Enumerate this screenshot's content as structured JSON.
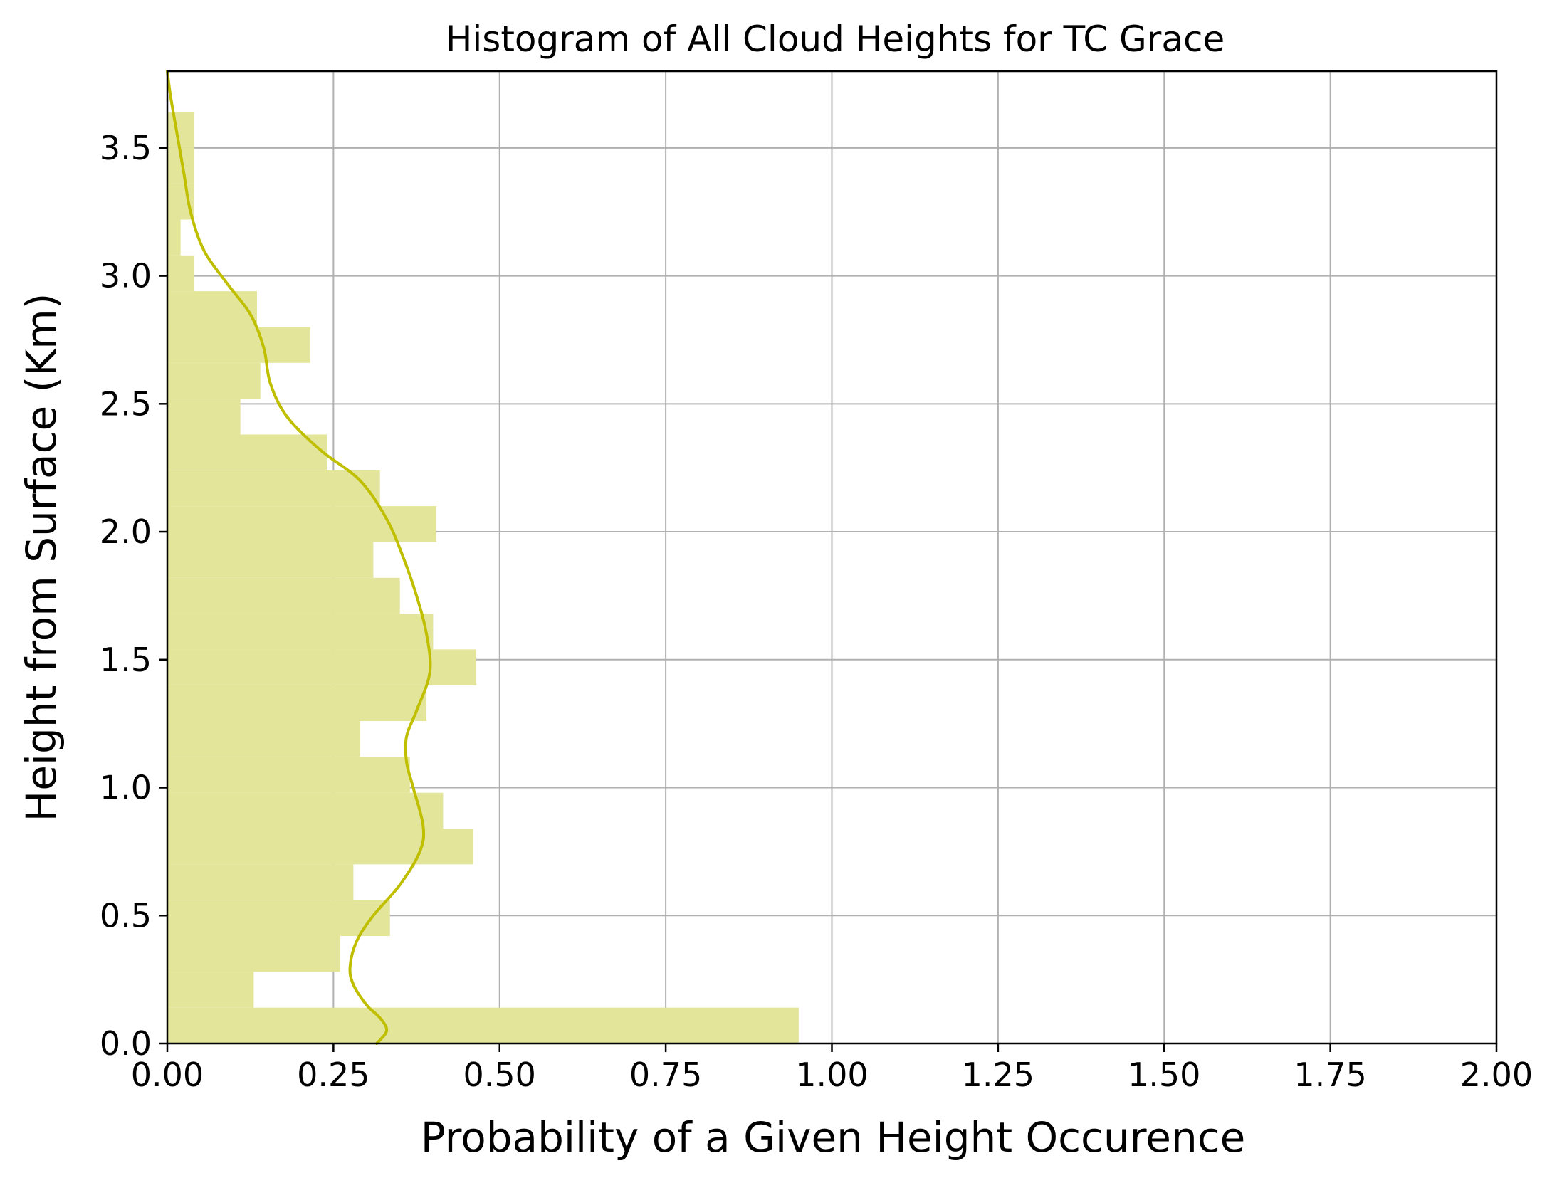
{
  "chart_data": {
    "type": "bar",
    "orientation": "horizontal",
    "title": "Histogram of All Cloud Heights for TC Grace",
    "xlabel": "Probability of a Given Height Occurence",
    "ylabel": "Height from Surface (Km)",
    "xlim": [
      0,
      2.0
    ],
    "ylim": [
      0,
      3.8
    ],
    "xticks": [
      "0.00",
      "0.25",
      "0.50",
      "0.75",
      "1.00",
      "1.25",
      "1.50",
      "1.75",
      "2.00"
    ],
    "yticks": [
      "0.0",
      "0.5",
      "1.0",
      "1.5",
      "2.0",
      "2.5",
      "3.0",
      "3.5"
    ],
    "grid": true,
    "bar_color": "#e3e59a",
    "kde_color": "#bfbf00",
    "bins": [
      {
        "bottom": 0.0,
        "top": 0.14,
        "value": 0.95
      },
      {
        "bottom": 0.14,
        "top": 0.28,
        "value": 0.13
      },
      {
        "bottom": 0.28,
        "top": 0.42,
        "value": 0.26
      },
      {
        "bottom": 0.42,
        "top": 0.56,
        "value": 0.335
      },
      {
        "bottom": 0.56,
        "top": 0.7,
        "value": 0.28
      },
      {
        "bottom": 0.7,
        "top": 0.84,
        "value": 0.46
      },
      {
        "bottom": 0.84,
        "top": 0.98,
        "value": 0.415
      },
      {
        "bottom": 0.98,
        "top": 1.12,
        "value": 0.365
      },
      {
        "bottom": 1.12,
        "top": 1.26,
        "value": 0.29
      },
      {
        "bottom": 1.26,
        "top": 1.4,
        "value": 0.39
      },
      {
        "bottom": 1.4,
        "top": 1.54,
        "value": 0.465
      },
      {
        "bottom": 1.54,
        "top": 1.68,
        "value": 0.4
      },
      {
        "bottom": 1.68,
        "top": 1.82,
        "value": 0.35
      },
      {
        "bottom": 1.82,
        "top": 1.96,
        "value": 0.31
      },
      {
        "bottom": 1.96,
        "top": 2.1,
        "value": 0.405
      },
      {
        "bottom": 2.1,
        "top": 2.24,
        "value": 0.32
      },
      {
        "bottom": 2.24,
        "top": 2.38,
        "value": 0.24
      },
      {
        "bottom": 2.38,
        "top": 2.52,
        "value": 0.11
      },
      {
        "bottom": 2.52,
        "top": 2.66,
        "value": 0.14
      },
      {
        "bottom": 2.66,
        "top": 2.8,
        "value": 0.215
      },
      {
        "bottom": 2.8,
        "top": 2.94,
        "value": 0.135
      },
      {
        "bottom": 2.94,
        "top": 3.08,
        "value": 0.04
      },
      {
        "bottom": 3.08,
        "top": 3.22,
        "value": 0.02
      },
      {
        "bottom": 3.22,
        "top": 3.36,
        "value": 0.04
      },
      {
        "bottom": 3.36,
        "top": 3.5,
        "value": 0.04
      },
      {
        "bottom": 3.5,
        "top": 3.64,
        "value": 0.04
      }
    ],
    "kde": [
      {
        "x": 0.315,
        "y": 0.0
      },
      {
        "x": 0.33,
        "y": 0.05
      },
      {
        "x": 0.32,
        "y": 0.1
      },
      {
        "x": 0.3,
        "y": 0.15
      },
      {
        "x": 0.28,
        "y": 0.23
      },
      {
        "x": 0.275,
        "y": 0.3
      },
      {
        "x": 0.285,
        "y": 0.4
      },
      {
        "x": 0.31,
        "y": 0.5
      },
      {
        "x": 0.35,
        "y": 0.62
      },
      {
        "x": 0.38,
        "y": 0.75
      },
      {
        "x": 0.385,
        "y": 0.85
      },
      {
        "x": 0.37,
        "y": 1.0
      },
      {
        "x": 0.36,
        "y": 1.1
      },
      {
        "x": 0.36,
        "y": 1.2
      },
      {
        "x": 0.375,
        "y": 1.3
      },
      {
        "x": 0.395,
        "y": 1.45
      },
      {
        "x": 0.39,
        "y": 1.6
      },
      {
        "x": 0.375,
        "y": 1.75
      },
      {
        "x": 0.355,
        "y": 1.9
      },
      {
        "x": 0.33,
        "y": 2.05
      },
      {
        "x": 0.29,
        "y": 2.2
      },
      {
        "x": 0.23,
        "y": 2.32
      },
      {
        "x": 0.18,
        "y": 2.45
      },
      {
        "x": 0.155,
        "y": 2.58
      },
      {
        "x": 0.145,
        "y": 2.72
      },
      {
        "x": 0.125,
        "y": 2.85
      },
      {
        "x": 0.09,
        "y": 2.97
      },
      {
        "x": 0.055,
        "y": 3.1
      },
      {
        "x": 0.035,
        "y": 3.25
      },
      {
        "x": 0.025,
        "y": 3.4
      },
      {
        "x": 0.015,
        "y": 3.55
      },
      {
        "x": 0.005,
        "y": 3.7
      },
      {
        "x": 0.0,
        "y": 3.8
      }
    ]
  }
}
